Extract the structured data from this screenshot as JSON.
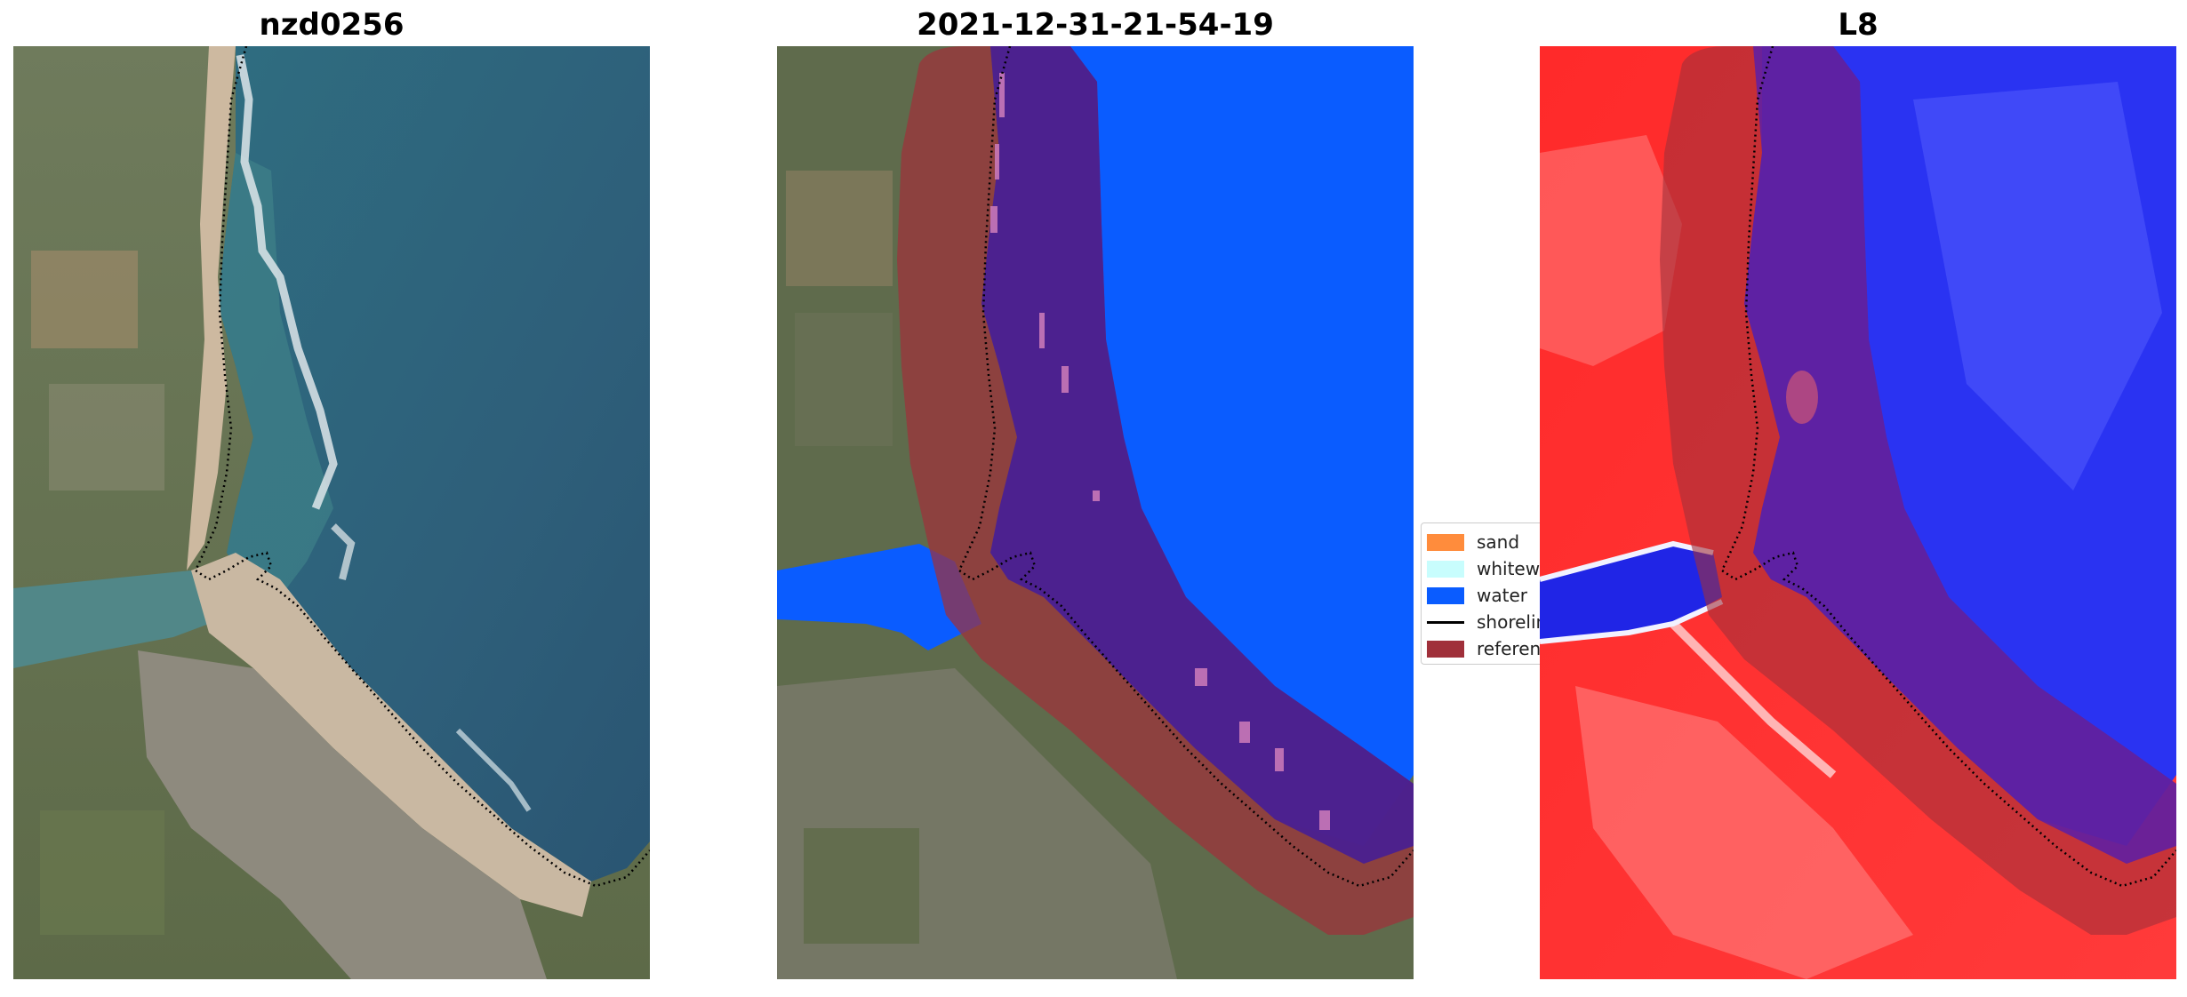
{
  "panels": [
    {
      "title": "nzd0256"
    },
    {
      "title": "2021-12-31-21-54-19"
    },
    {
      "title": "L8"
    }
  ],
  "legend": {
    "items": [
      {
        "label": "sand",
        "color": "#ff8c3c"
      },
      {
        "label": "whitewater",
        "color": "#c8fdfd"
      },
      {
        "label": "water",
        "color": "#0a5cff"
      },
      {
        "label": "shoreline",
        "color": "#000000"
      },
      {
        "label": "reference",
        "color": "#a0303a"
      }
    ]
  }
}
